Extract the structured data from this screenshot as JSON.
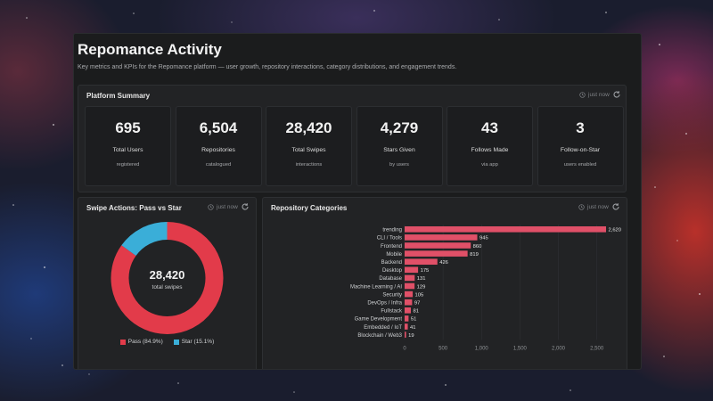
{
  "page": {
    "title": "Repomance Activity",
    "subtitle": "Key metrics and KPIs for the Repomance platform — user growth, repository interactions, category distributions, and engagement trends."
  },
  "summary": {
    "title": "Platform Summary",
    "updated": "just now",
    "kpis": [
      {
        "value": "695",
        "label": "Total Users",
        "sub": "registered"
      },
      {
        "value": "6,504",
        "label": "Repositories",
        "sub": "catalogued"
      },
      {
        "value": "28,420",
        "label": "Total Swipes",
        "sub": "interactions"
      },
      {
        "value": "4,279",
        "label": "Stars Given",
        "sub": "by users"
      },
      {
        "value": "43",
        "label": "Follows Made",
        "sub": "via app"
      },
      {
        "value": "3",
        "label": "Follow-on-Star",
        "sub": "users enabled"
      }
    ]
  },
  "swipes": {
    "title": "Swipe Actions: Pass vs Star",
    "updated": "just now",
    "center_value": "28,420",
    "center_label": "total swipes",
    "legend": [
      "Pass (84.9%)",
      "Star (15.1%)"
    ],
    "colors": {
      "pass": "#e23b4a",
      "star": "#3aaed8"
    }
  },
  "categories": {
    "title": "Repository Categories",
    "updated": "just now",
    "bar_color": "#e05068"
  },
  "chart_data": [
    {
      "type": "pie",
      "labels": [
        "Pass",
        "Star"
      ],
      "values": [
        84.9,
        15.1
      ]
    },
    {
      "type": "bar",
      "orientation": "horizontal",
      "categories": [
        "trending",
        "CLI / Tools",
        "Frontend",
        "Mobile",
        "Backend",
        "Desktop",
        "Database",
        "Machine Learning / AI",
        "Security",
        "DevOps / Infra",
        "Fullstack",
        "Game Development",
        "Embedded / IoT",
        "Blockchain / Web3"
      ],
      "values": [
        2620,
        945,
        860,
        819,
        426,
        175,
        131,
        129,
        105,
        97,
        81,
        51,
        41,
        19
      ],
      "xlim": [
        0,
        2620
      ],
      "xticks": [
        0,
        500,
        1000,
        1500,
        2000,
        2500
      ],
      "xtick_labels": [
        "0",
        "500",
        "1,000",
        "1,500",
        "2,000",
        "2,500"
      ],
      "grid": true
    }
  ]
}
